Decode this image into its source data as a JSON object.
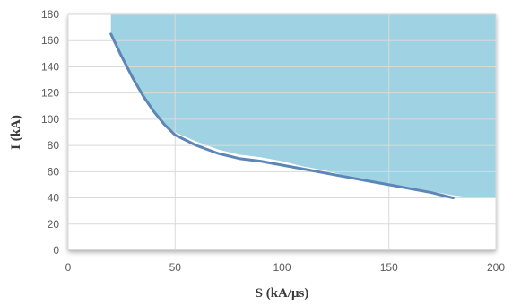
{
  "chart_data": {
    "type": "line",
    "title": "",
    "xlabel": "S (kA/μs)",
    "ylabel": "I (kA)",
    "xlim": [
      0,
      200
    ],
    "ylim": [
      0,
      180
    ],
    "x_ticks": [
      0,
      50,
      100,
      150,
      200
    ],
    "y_ticks": [
      0,
      20,
      40,
      60,
      80,
      100,
      120,
      140,
      160,
      180
    ],
    "grid": true,
    "legend": "none",
    "colors": {
      "curve": "#5b86b5",
      "shaded_region": "#9fd3e3",
      "gridline": "#d9d9d9",
      "plot_background": "#ffffff"
    },
    "series": [
      {
        "values": [
          [
            20,
            165
          ],
          [
            25,
            148
          ],
          [
            30,
            132
          ],
          [
            35,
            118
          ],
          [
            40,
            106
          ],
          [
            45,
            96
          ],
          [
            50,
            88
          ],
          [
            60,
            80
          ],
          [
            70,
            74
          ],
          [
            80,
            70
          ],
          [
            90,
            68
          ],
          [
            100,
            65
          ],
          [
            110,
            62
          ],
          [
            120,
            59
          ],
          [
            130,
            56
          ],
          [
            140,
            53
          ],
          [
            150,
            50
          ],
          [
            160,
            47
          ],
          [
            170,
            44
          ],
          [
            180,
            40
          ]
        ]
      }
    ],
    "shaded_region": {
      "upper": 180,
      "lower_boundary": [
        [
          20,
          165
        ],
        [
          25,
          148
        ],
        [
          30,
          132
        ],
        [
          35,
          118
        ],
        [
          40,
          106
        ],
        [
          45,
          96
        ],
        [
          50,
          90
        ],
        [
          60,
          83
        ],
        [
          70,
          77
        ],
        [
          80,
          73
        ],
        [
          90,
          71
        ],
        [
          100,
          68
        ],
        [
          110,
          64
        ],
        [
          120,
          61
        ],
        [
          130,
          57
        ],
        [
          140,
          53
        ],
        [
          150,
          50
        ],
        [
          160,
          47
        ],
        [
          170,
          45
        ],
        [
          180,
          42
        ],
        [
          190,
          40
        ],
        [
          200,
          40
        ]
      ]
    }
  }
}
